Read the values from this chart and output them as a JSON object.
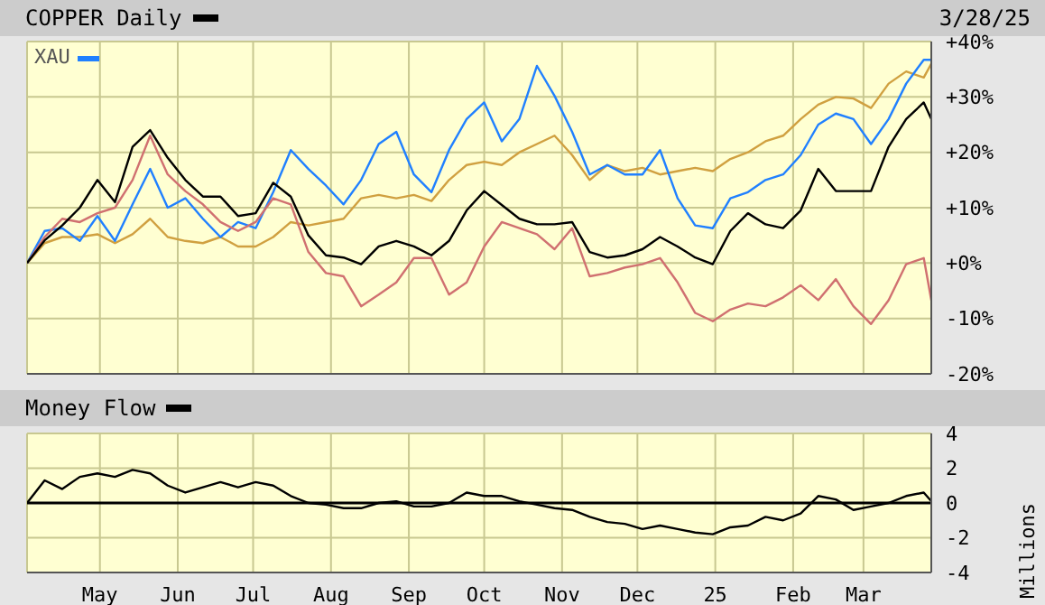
{
  "chart_data": [
    {
      "type": "line",
      "annotations": [
        "3/28/25"
      ],
      "x": [
        "2024-04-02",
        "2024-04-09",
        "2024-04-16",
        "2024-04-23",
        "2024-04-30",
        "2024-05-07",
        "2024-05-14",
        "2024-05-21",
        "2024-05-28",
        "2024-06-04",
        "2024-06-11",
        "2024-06-18",
        "2024-06-25",
        "2024-07-02",
        "2024-07-09",
        "2024-07-16",
        "2024-07-23",
        "2024-07-30",
        "2024-08-06",
        "2024-08-13",
        "2024-08-20",
        "2024-08-27",
        "2024-09-03",
        "2024-09-10",
        "2024-09-17",
        "2024-09-24",
        "2024-10-01",
        "2024-10-08",
        "2024-10-15",
        "2024-10-22",
        "2024-10-29",
        "2024-11-05",
        "2024-11-12",
        "2024-11-19",
        "2024-11-26",
        "2024-12-03",
        "2024-12-10",
        "2024-12-17",
        "2024-12-24",
        "2024-12-31",
        "2025-01-07",
        "2025-01-14",
        "2025-01-21",
        "2025-01-28",
        "2025-02-04",
        "2025-02-11",
        "2025-02-18",
        "2025-02-25",
        "2025-03-04",
        "2025-03-11",
        "2025-03-18",
        "2025-03-25",
        "2025-03-28"
      ],
      "series": [
        {
          "name": "COPPER Daily",
          "color": "#000000",
          "values": [
            0,
            4.1,
            6.8,
            10,
            15,
            11,
            21,
            24,
            19,
            15,
            12,
            12,
            8.5,
            9,
            14.5,
            12,
            5,
            1.4,
            1,
            -0.2,
            3,
            4,
            3,
            1.4,
            4,
            9.5,
            13,
            10.5,
            8,
            7,
            7,
            7.4,
            2,
            1,
            1.4,
            2.5,
            4.7,
            3,
            1,
            -0.2,
            5.8,
            9,
            7,
            6.3,
            9.5,
            17,
            13,
            13,
            13,
            21,
            26,
            29,
            26
          ]
        },
        {
          "color": "#d07070",
          "values": [
            0,
            4.7,
            8,
            7.4,
            9,
            10,
            15,
            23,
            16,
            13,
            10.6,
            7.4,
            5.8,
            7.4,
            11.7,
            10.6,
            2,
            -1.8,
            -2.4,
            -7.8,
            -5.7,
            -3.5,
            0.9,
            0.9,
            -5.7,
            -3.5,
            3,
            7.4,
            6.3,
            5.2,
            2.5,
            6.3,
            -2.4,
            -1.8,
            -0.8,
            -0.2,
            0.9,
            -3.5,
            -9,
            -10.5,
            -8.4,
            -7.3,
            -7.8,
            -6.2,
            -4,
            -6.7,
            -2.9,
            -7.8,
            -11,
            -6.7,
            -0.2,
            0.9,
            -6.7
          ]
        },
        {
          "name": "XAU",
          "color": "#2080ff",
          "values": [
            0,
            5.8,
            6.3,
            4,
            8.5,
            4,
            10.6,
            17,
            10,
            11.7,
            8,
            4.7,
            7.4,
            6.3,
            12.8,
            20.4,
            17,
            14,
            10.6,
            15,
            21.5,
            23.7,
            16,
            12.8,
            20.4,
            26,
            29,
            22,
            26,
            35.6,
            30.2,
            23.7,
            16,
            17.7,
            16,
            16,
            20.4,
            11.7,
            6.8,
            6.3,
            11.7,
            12.8,
            15,
            16,
            19.5,
            25,
            27,
            26,
            21.5,
            26,
            32.4,
            36.7,
            36.7
          ]
        },
        {
          "color": "#d0a040",
          "values": [
            0,
            3.6,
            4.7,
            4.7,
            5.2,
            3.6,
            5.2,
            8,
            4.7,
            4,
            3.6,
            4.7,
            3,
            3,
            4.7,
            7.4,
            6.8,
            7.4,
            8,
            11.7,
            12.3,
            11.7,
            12.3,
            11.2,
            15,
            17.7,
            18.3,
            17.7,
            20,
            21.5,
            23,
            19.5,
            15,
            17.7,
            16.6,
            17.2,
            16,
            16.6,
            17.2,
            16.6,
            18.8,
            20,
            22,
            23,
            26,
            28.6,
            30,
            29.7,
            28,
            32.4,
            34.6,
            33.5,
            36
          ]
        }
      ],
      "xlim": [
        "2024-04-02",
        "2025-03-28"
      ],
      "xticks": [
        {
          "value": "2024-05-01",
          "label": null
        },
        {
          "value": "2024-06-01",
          "label": null
        },
        {
          "value": "2024-07-01",
          "label": null
        },
        {
          "value": "2024-08-01",
          "label": null
        },
        {
          "value": "2024-09-01",
          "label": null
        },
        {
          "value": "2024-10-01",
          "label": null
        },
        {
          "value": "2024-11-01",
          "label": null
        },
        {
          "value": "2024-12-01",
          "label": null
        },
        {
          "value": "2025-01-01",
          "label": null
        },
        {
          "value": "2025-02-01",
          "label": null
        },
        {
          "value": "2025-03-01",
          "label": null
        }
      ],
      "ylim": [
        -20,
        40
      ],
      "yticks": [
        {
          "value": -20,
          "label": "-20%"
        },
        {
          "value": -10,
          "label": "-10%"
        },
        {
          "value": 0,
          "label": "+0%"
        },
        {
          "value": 10,
          "label": "+10%"
        },
        {
          "value": 20,
          "label": "+20%"
        },
        {
          "value": 30,
          "label": "+30%"
        },
        {
          "value": 40,
          "label": "+40%"
        }
      ],
      "tick_labels": "y",
      "grid": true,
      "legend": "top left"
    },
    {
      "type": "line",
      "ylabel": "Millions",
      "x": [
        "2024-04-02",
        "2024-04-09",
        "2024-04-16",
        "2024-04-23",
        "2024-04-30",
        "2024-05-07",
        "2024-05-14",
        "2024-05-21",
        "2024-05-28",
        "2024-06-04",
        "2024-06-11",
        "2024-06-18",
        "2024-06-25",
        "2024-07-02",
        "2024-07-09",
        "2024-07-16",
        "2024-07-23",
        "2024-07-30",
        "2024-08-06",
        "2024-08-13",
        "2024-08-20",
        "2024-08-27",
        "2024-09-03",
        "2024-09-10",
        "2024-09-17",
        "2024-09-24",
        "2024-10-01",
        "2024-10-08",
        "2024-10-15",
        "2024-10-22",
        "2024-10-29",
        "2024-11-05",
        "2024-11-12",
        "2024-11-19",
        "2024-11-26",
        "2024-12-03",
        "2024-12-10",
        "2024-12-17",
        "2024-12-24",
        "2024-12-31",
        "2025-01-07",
        "2025-01-14",
        "2025-01-21",
        "2025-01-28",
        "2025-02-04",
        "2025-02-11",
        "2025-02-18",
        "2025-02-25",
        "2025-03-04",
        "2025-03-11",
        "2025-03-18",
        "2025-03-25",
        "2025-03-28"
      ],
      "series": [
        {
          "name": "Money Flow",
          "color": "#000000",
          "values": [
            0,
            1.3,
            0.8,
            1.5,
            1.7,
            1.5,
            1.9,
            1.7,
            1,
            0.6,
            0.9,
            1.2,
            0.9,
            1.2,
            1,
            0.4,
            0,
            -0.1,
            -0.3,
            -0.3,
            0,
            0.1,
            -0.2,
            -0.2,
            0,
            0.6,
            0.4,
            0.4,
            0.1,
            -0.1,
            -0.3,
            -0.4,
            -0.8,
            -1.1,
            -1.2,
            -1.5,
            -1.3,
            -1.5,
            -1.7,
            -1.8,
            -1.4,
            -1.3,
            -0.8,
            -1,
            -0.6,
            0.4,
            0.2,
            -0.4,
            -0.2,
            0,
            0.4,
            0.6,
            0.1
          ]
        }
      ],
      "xlim": [
        "2024-04-02",
        "2025-03-28"
      ],
      "xticks": [
        {
          "value": "2024-05-01",
          "label": "May"
        },
        {
          "value": "2024-06-01",
          "label": "Jun"
        },
        {
          "value": "2024-07-01",
          "label": "Jul"
        },
        {
          "value": "2024-08-01",
          "label": "Aug"
        },
        {
          "value": "2024-09-01",
          "label": "Sep"
        },
        {
          "value": "2024-10-01",
          "label": "Oct"
        },
        {
          "value": "2024-11-01",
          "label": "Nov"
        },
        {
          "value": "2024-12-01",
          "label": "Dec"
        },
        {
          "value": "2025-01-01",
          "label": "25"
        },
        {
          "value": "2025-02-01",
          "label": "Feb"
        },
        {
          "value": "2025-03-01",
          "label": "Mar"
        }
      ],
      "ylim": [
        -4,
        4
      ],
      "yticks": [
        -4,
        -2,
        0,
        2,
        4
      ],
      "ref_lines": [
        {
          "axis": "y",
          "value": 0,
          "color": "#000000"
        }
      ],
      "grid": true
    }
  ]
}
